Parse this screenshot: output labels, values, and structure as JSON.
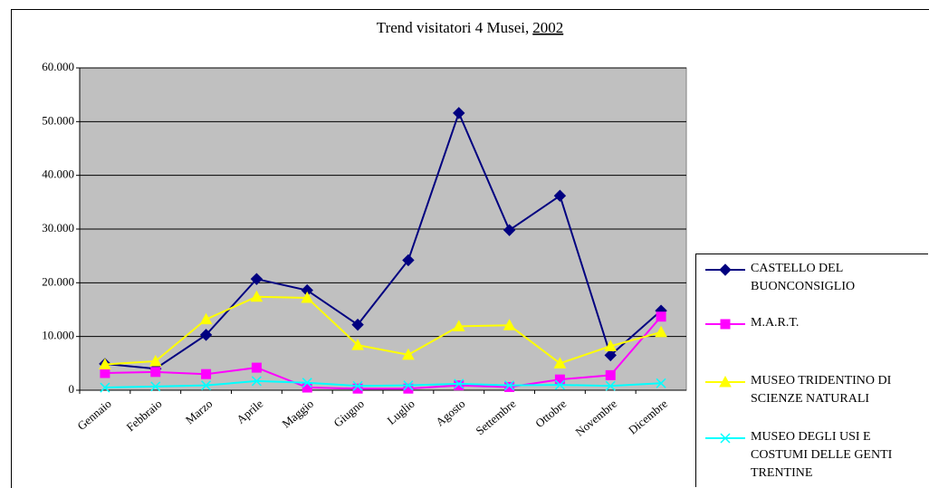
{
  "chart_data": {
    "type": "line",
    "title": "Trend visitatori 4 Musei,",
    "subtitle": "2002",
    "categories": [
      "Gennaio",
      "Febbraio",
      "Marzo",
      "Aprile",
      "Maggio",
      "Giugno",
      "Luglio",
      "Agosto",
      "Settembre",
      "Ottobre",
      "Novembre",
      "Dicembre"
    ],
    "series": [
      {
        "name": "CASTELLO DEL BUONCONSIGLIO",
        "color": "#000080",
        "marker": "diamond",
        "values": [
          4900,
          4000,
          10300,
          20700,
          18600,
          12200,
          24200,
          51600,
          29800,
          36200,
          6500,
          14800
        ]
      },
      {
        "name": "M.A.R.T.",
        "color": "#ff00ff",
        "marker": "square",
        "values": [
          3200,
          3400,
          3000,
          4200,
          500,
          300,
          300,
          900,
          600,
          2000,
          2800,
          13700
        ]
      },
      {
        "name": "MUSEO TRIDENTINO DI SCIENZE NATURALI",
        "color": "#ffff00",
        "marker": "triangle",
        "values": [
          4800,
          5400,
          13200,
          17400,
          17200,
          8400,
          6600,
          11900,
          12100,
          5000,
          8200,
          10800
        ]
      },
      {
        "name": "MUSEO DEGLI USI E COSTUMI DELLE GENTI TRENTINE",
        "color": "#00ffff",
        "marker": "x",
        "values": [
          500,
          700,
          900,
          1700,
          1400,
          800,
          900,
          1200,
          900,
          1000,
          800,
          1300
        ]
      }
    ],
    "ylim": [
      0,
      60000
    ],
    "yticks": [
      0,
      {
        "value": 10000,
        "label": "10.000"
      },
      {
        "value": 20000,
        "label": "20.000"
      },
      {
        "value": 30000,
        "label": "30.000"
      },
      {
        "value": 40000,
        "label": "40.000"
      },
      {
        "value": 50000,
        "label": "50.000"
      },
      {
        "value": 60000,
        "label": "60.000"
      }
    ],
    "grid": true,
    "plot_background": "#c0c0c0",
    "legend": "right"
  }
}
